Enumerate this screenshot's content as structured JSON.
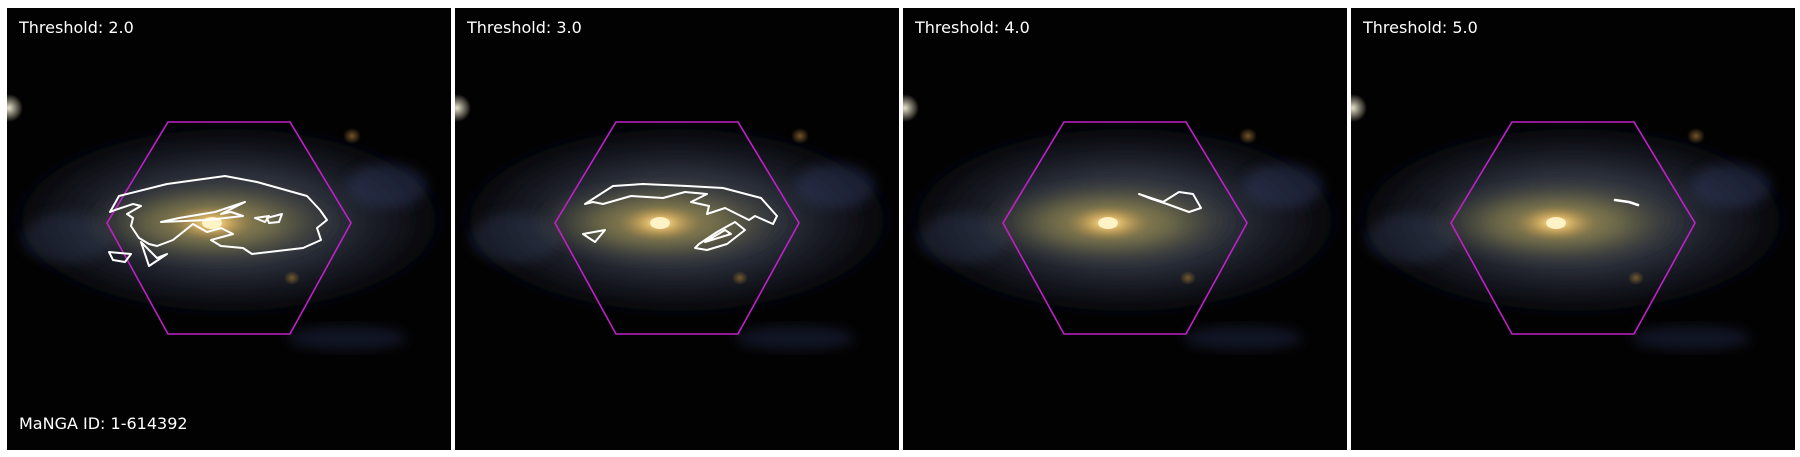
{
  "figure": {
    "galaxy_id_label": "MaNGA ID: 1-614392",
    "colors": {
      "background": "#030202",
      "ifu_hexagon": "#c020c8",
      "contour": "#ffffff",
      "text": "#ffffff"
    },
    "icons": [
      "galaxy-image",
      "ifu-hexagon-outline",
      "contour-outline"
    ]
  },
  "panels": [
    {
      "threshold_label": "Threshold: 2.0"
    },
    {
      "threshold_label": "Threshold: 3.0"
    },
    {
      "threshold_label": "Threshold: 4.0"
    },
    {
      "threshold_label": "Threshold: 5.0"
    }
  ]
}
